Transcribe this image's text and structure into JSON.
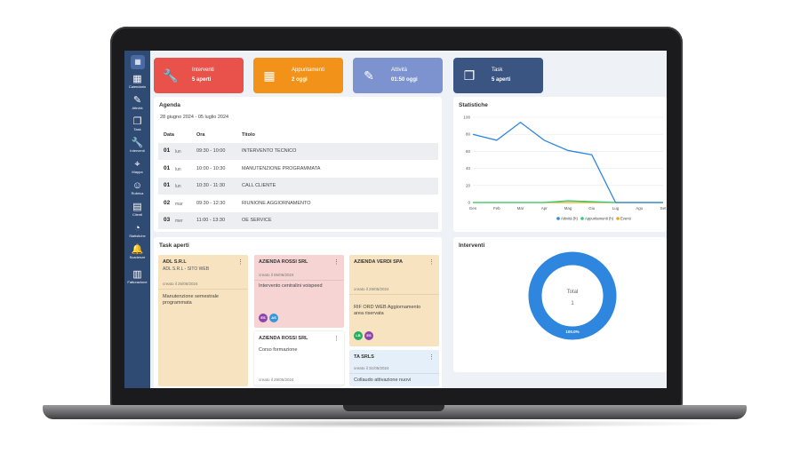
{
  "sidebar": {
    "logo": "▦",
    "items": [
      {
        "label": "Calendario",
        "icon": "calendar-icon",
        "glyph": "▦"
      },
      {
        "label": "Attività",
        "icon": "edit-icon",
        "glyph": "✎"
      },
      {
        "label": "Task",
        "icon": "task-icon",
        "glyph": "❐"
      },
      {
        "label": "Interventi",
        "icon": "wrench-icon",
        "glyph": "🔧"
      },
      {
        "label": "Mappa",
        "icon": "map-pin-icon",
        "glyph": "⌖"
      },
      {
        "label": "Rubrica",
        "icon": "users-icon",
        "glyph": "☺"
      },
      {
        "label": "Clienti",
        "icon": "clients-icon",
        "glyph": "▤"
      },
      {
        "label": "Statistiche",
        "icon": "pie-icon",
        "glyph": "◔"
      },
      {
        "label": "Scadenze",
        "icon": "bell-icon",
        "glyph": "🔔"
      },
      {
        "label": "Fatturazione",
        "icon": "invoice-icon",
        "glyph": "▥"
      }
    ]
  },
  "cards": [
    {
      "title": "Interventi",
      "value": "5 aperti",
      "color": "#e8524a",
      "icon": "wrench-icon",
      "glyph": "🔧"
    },
    {
      "title": "Appuntamenti",
      "value": "2 oggi",
      "color": "#f29218",
      "icon": "calendar-icon",
      "glyph": "▦"
    },
    {
      "title": "Attività",
      "value": "01:50 oggi",
      "color": "#7d93cf",
      "icon": "edit-icon",
      "glyph": "✎"
    },
    {
      "title": "Task",
      "value": "5 aperti",
      "color": "#3b5583",
      "icon": "task-icon",
      "glyph": "❐"
    }
  ],
  "agenda": {
    "title": "Agenda",
    "range": "28 giugno 2024 - 05 luglio 2024",
    "headers": {
      "date": "Data",
      "time": "Ora",
      "title": "Titolo"
    },
    "rows": [
      {
        "day": "01",
        "dow": "lun",
        "time": "09:30 - 10:00",
        "title": "INTERVENTO TECNICO"
      },
      {
        "day": "01",
        "dow": "lun",
        "time": "10:00 - 10:30",
        "title": "MANUTENZIONE PROGRAMMATA"
      },
      {
        "day": "01",
        "dow": "lun",
        "time": "10:30 - 11:30",
        "title": "CALL CLIENTE"
      },
      {
        "day": "02",
        "dow": "mar",
        "time": "09:30 - 12:30",
        "title": "RIUNIONE AGGIORNAMENTO"
      },
      {
        "day": "03",
        "dow": "mer",
        "time": "11:00 - 13:30",
        "title": "OE SERVICE"
      }
    ]
  },
  "stats": {
    "title": "Statistiche",
    "chart_data": {
      "type": "line",
      "categories": [
        "Gen",
        "Feb",
        "Mar",
        "Apr",
        "Mag",
        "Giu",
        "Lug",
        "Ago",
        "Set"
      ],
      "ylim": [
        0,
        100
      ],
      "yticks": [
        0,
        20,
        40,
        60,
        80,
        100
      ],
      "series": [
        {
          "name": "Attività (h)",
          "color": "#2e86de",
          "values": [
            80,
            73,
            94,
            73,
            61,
            56,
            0,
            0,
            0
          ]
        },
        {
          "name": "Appuntamenti (h)",
          "color": "#2ecc71",
          "values": [
            0,
            0,
            0,
            0,
            2,
            1,
            0,
            0,
            0
          ]
        },
        {
          "name": "Eventi",
          "color": "#f1a31b",
          "values": [
            0,
            0,
            0,
            0,
            0,
            0,
            0,
            0,
            0
          ]
        }
      ],
      "legend": "bottom"
    }
  },
  "tasks": {
    "title": "Task aperti",
    "columns": [
      [
        {
          "head": "ADL S.R.L",
          "sub": "ADL S.R.L - SITO WEB",
          "created": "creato il 25/05/2024",
          "desc": "Manutenzione semestrale programmata",
          "bg": "#f8e3c0",
          "avatars": []
        }
      ],
      [
        {
          "head": "AZIENDA ROSSI SRL",
          "sub": "",
          "created": "creato il 05/06/2024",
          "desc": "Intervento centralini voispeed",
          "bg": "#f6d4d4",
          "avatars": [
            {
              "t": "ES",
              "c": "#8e44ad"
            },
            {
              "t": "AS",
              "c": "#3498db"
            }
          ]
        },
        {
          "head": "AZIENDA ROSSI SRL",
          "sub": "",
          "created": "creato il 29/05/2024",
          "desc": "Corso formazione",
          "bg": "#ffffff",
          "avatars": []
        }
      ],
      [
        {
          "head": "AZIENDA VERDI SPA",
          "sub": "",
          "created": "creato il 29/05/2024",
          "desc": "RIF ORD WEB Aggiornamento area riservata",
          "bg": "#f8e3c0",
          "avatars": [
            {
              "t": "LB",
              "c": "#27ae60"
            },
            {
              "t": "ES",
              "c": "#8e44ad"
            }
          ]
        },
        {
          "head": "TA SRLS",
          "sub": "",
          "created": "creato il 31/05/2024",
          "desc": "Collaudo attivazione nuovi",
          "bg": "#e5effa",
          "avatars": []
        }
      ]
    ]
  },
  "interventi": {
    "title": "Interventi",
    "total_label": "Total",
    "total_value": "1",
    "pct_label": "100.0%",
    "chart_data": {
      "type": "pie",
      "values": [
        100
      ],
      "colors": [
        "#2e86de"
      ]
    }
  }
}
